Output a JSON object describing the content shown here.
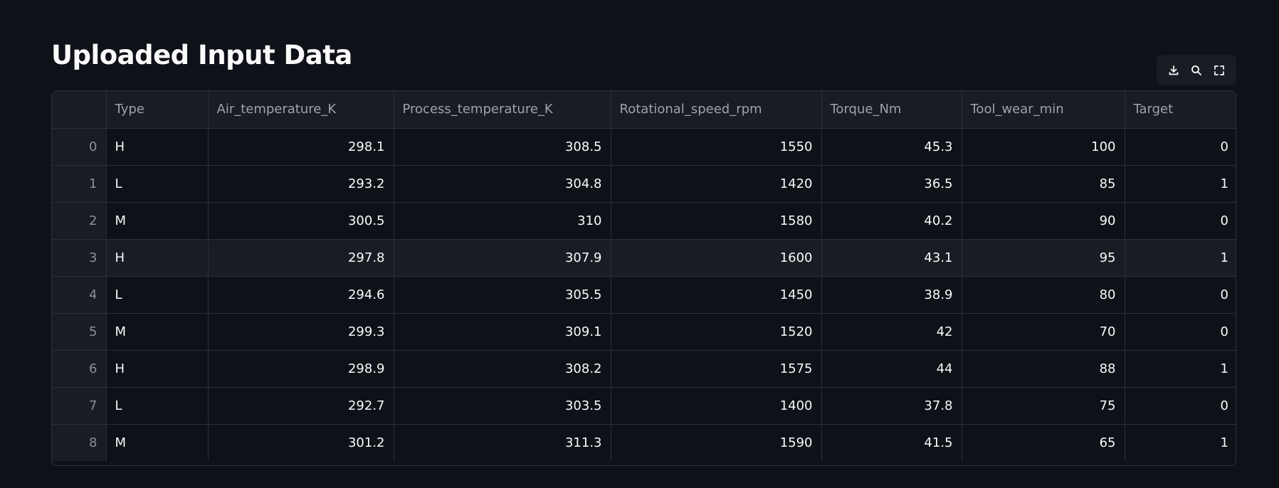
{
  "title": "Uploaded Input Data",
  "toolbar": {
    "download_icon": "download-icon",
    "search_icon": "search-icon",
    "fullscreen_icon": "fullscreen-icon"
  },
  "table": {
    "columns": [
      "",
      "Type",
      "Air_temperature_K",
      "Process_temperature_K",
      "Rotational_speed_rpm",
      "Torque_Nm",
      "Tool_wear_min",
      "Target"
    ],
    "rows": [
      [
        "0",
        "H",
        "298.1",
        "308.5",
        "1550",
        "45.3",
        "100",
        "0"
      ],
      [
        "1",
        "L",
        "293.2",
        "304.8",
        "1420",
        "36.5",
        "85",
        "1"
      ],
      [
        "2",
        "M",
        "300.5",
        "310",
        "1580",
        "40.2",
        "90",
        "0"
      ],
      [
        "3",
        "H",
        "297.8",
        "307.9",
        "1600",
        "43.1",
        "95",
        "1"
      ],
      [
        "4",
        "L",
        "294.6",
        "305.5",
        "1450",
        "38.9",
        "80",
        "0"
      ],
      [
        "5",
        "M",
        "299.3",
        "309.1",
        "1520",
        "42",
        "70",
        "0"
      ],
      [
        "6",
        "H",
        "298.9",
        "308.2",
        "1575",
        "44",
        "88",
        "1"
      ],
      [
        "7",
        "L",
        "292.7",
        "303.5",
        "1400",
        "37.8",
        "75",
        "0"
      ],
      [
        "8",
        "M",
        "301.2",
        "311.3",
        "1590",
        "41.5",
        "65",
        "1"
      ]
    ]
  }
}
